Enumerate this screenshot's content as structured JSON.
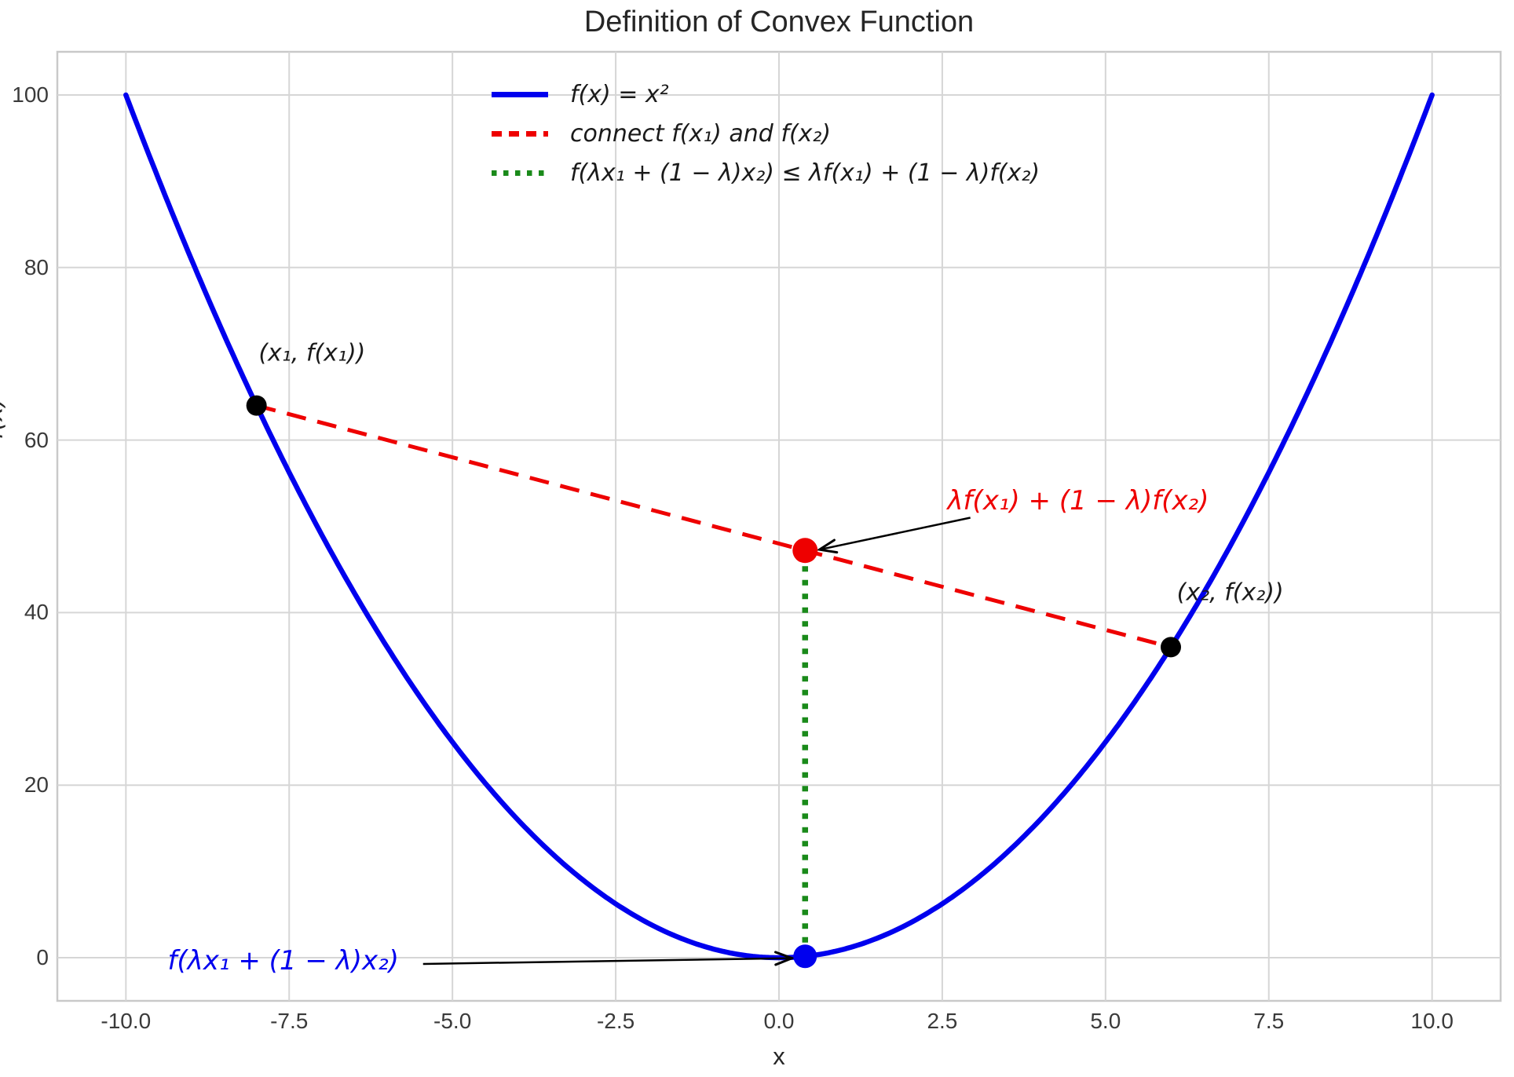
{
  "chart_data": {
    "type": "line",
    "title": "Definition of Convex Function",
    "xlabel": "x",
    "ylabel": "f(x)",
    "xlim": [
      -11.05,
      11.05
    ],
    "ylim": [
      -5,
      105
    ],
    "grid": true,
    "legend_position": "upper center-left",
    "colors": {
      "background": "#ffffff",
      "grid": "#d6d6d6",
      "spine": "#c9c9c9",
      "title_text": "#262626",
      "tick_text": "#3a3a3a",
      "curve_blue": "#0000ee",
      "chord_red": "#ee0000",
      "dotted_green": "#1a8a1a",
      "point_black": "#000000",
      "arrow_black": "#000000"
    },
    "x_ticks": [
      -10.0,
      -7.5,
      -5.0,
      -2.5,
      0.0,
      2.5,
      5.0,
      7.5,
      10.0
    ],
    "x_tick_labels": [
      "-10.0",
      "-7.5",
      "-5.0",
      "-2.5",
      "0.0",
      "2.5",
      "5.0",
      "7.5",
      "10.0"
    ],
    "y_ticks": [
      0,
      20,
      40,
      60,
      80,
      100
    ],
    "y_tick_labels": [
      "0",
      "20",
      "40",
      "60",
      "80",
      "100"
    ],
    "series": [
      {
        "name": "parabola",
        "label": "f(x) = x²",
        "kind": "function",
        "expr": "x^2",
        "x_range": [
          -10,
          10
        ],
        "style": "solid",
        "color": "#0000ee",
        "width": 6.5
      },
      {
        "name": "chord",
        "label": "connect f(x₁) and f(x₂)",
        "kind": "segment",
        "from": [
          -8,
          64
        ],
        "to": [
          6,
          36
        ],
        "style": "dashed",
        "color": "#ee0000",
        "width": 5
      },
      {
        "name": "lambda-combination-segment",
        "label": "f(λx₁ + (1 − λ)x₂) ≤ λf(x₁) + (1 − λ)f(x₂)",
        "kind": "segment",
        "from": [
          0.4,
          0.16
        ],
        "to": [
          0.4,
          47.2
        ],
        "style": "dotted",
        "color": "#1a8a1a",
        "width": 7.5
      }
    ],
    "points": [
      {
        "name": "point-x1",
        "x": -8,
        "y": 64,
        "color": "#000000",
        "r": 13
      },
      {
        "name": "point-x2",
        "x": 6,
        "y": 36,
        "color": "#000000",
        "r": 13
      },
      {
        "name": "point-chord-combination",
        "x": 0.4,
        "y": 47.2,
        "color": "#ee0000",
        "r": 16
      },
      {
        "name": "point-function-value",
        "x": 0.4,
        "y": 0.16,
        "color": "#0000ee",
        "r": 15
      }
    ],
    "annotations": [
      {
        "name": "label-x1",
        "text": "(x₁, f(x₁))",
        "color": "#1a1a1a",
        "size": "ann-pt",
        "x": -7.15,
        "y": 70.1,
        "arrow": null
      },
      {
        "name": "label-x2",
        "text": "(x₂, f(x₂))",
        "color": "#1a1a1a",
        "size": "ann-pt",
        "x": 6.91,
        "y": 42.3,
        "arrow": null
      },
      {
        "name": "label-chord-value",
        "text": "λf(x₁) + (1 − λ)f(x₂)",
        "color": "#ee0000",
        "size": "ann-big",
        "x": 4.58,
        "y": 53.0,
        "arrow": {
          "from": [
            2.93,
            51.0
          ],
          "to": [
            0.62,
            47.3
          ]
        }
      },
      {
        "name": "label-function-value",
        "text": "f(λx₁ + (1 − λ)x₂)",
        "color": "#0000ee",
        "size": "ann-big",
        "x": -7.59,
        "y": -0.36,
        "arrow": {
          "from": [
            -5.45,
            -0.72
          ],
          "to": [
            0.2,
            -0.05
          ]
        }
      }
    ],
    "legend": {
      "entries": [
        {
          "label": "f(x) = x²",
          "color": "#0000ee",
          "style": "solid"
        },
        {
          "label": "connect f(x₁) and f(x₂)",
          "color": "#ee0000",
          "style": "dashed"
        },
        {
          "label": "f(λx₁ + (1 − λ)x₂) ≤ λf(x₁) + (1 − λ)f(x₂)",
          "color": "#1a8a1a",
          "style": "dotted"
        }
      ]
    }
  }
}
